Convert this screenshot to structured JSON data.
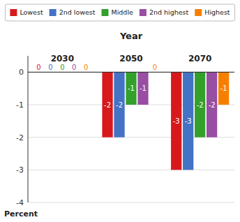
{
  "chart_data": {
    "type": "bar",
    "title": "Year",
    "ylabel": "Percent",
    "categories": [
      "2030",
      "2050",
      "2070"
    ],
    "series": [
      {
        "name": "Lowest",
        "color": "#d7191c",
        "values": [
          0,
          -2,
          -3
        ]
      },
      {
        "name": "2nd lowest",
        "color": "#4472c4",
        "values": [
          0,
          -2,
          -3
        ]
      },
      {
        "name": "Middle",
        "color": "#33a02c",
        "values": [
          0,
          -1,
          -2
        ]
      },
      {
        "name": "2nd highest",
        "color": "#984ea3",
        "values": [
          0,
          -1,
          -2
        ]
      },
      {
        "name": "Highest",
        "color": "#f77f00",
        "values": [
          0,
          0,
          -1
        ]
      }
    ],
    "ylim": [
      -4,
      0.5
    ],
    "yticks": [
      0,
      -1,
      -2,
      -3,
      -4
    ],
    "grid": true,
    "data_labels": true,
    "legend": "top"
  }
}
